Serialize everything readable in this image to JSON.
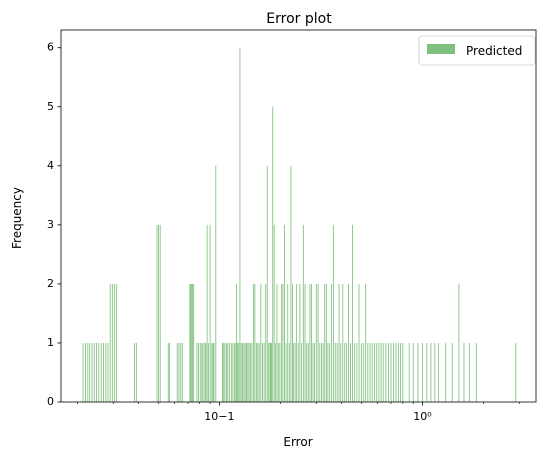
{
  "chart_data": {
    "type": "bar",
    "title": "Error plot",
    "xlabel": "Error",
    "ylabel": "Frequency",
    "xscale": "log",
    "xlim": [
      0.0166,
      3.62
    ],
    "ylim": [
      0,
      6.3
    ],
    "grid": false,
    "legend_position": "top-right",
    "x_tick_labels": [
      "10−1",
      "10⁰"
    ],
    "y_tick_labels": [
      "0",
      "1",
      "2",
      "3",
      "4",
      "5",
      "6"
    ],
    "series": [
      {
        "name": "Predicted",
        "color": "#81c17f",
        "bar_width_log10": 0.0042,
        "x": [
          0.0213,
          0.0219,
          0.0225,
          0.023,
          0.0236,
          0.0242,
          0.0248,
          0.0255,
          0.0262,
          0.0269,
          0.0276,
          0.0283,
          0.029,
          0.0297,
          0.0304,
          0.0311,
          0.0382,
          0.039,
          0.0493,
          0.0502,
          0.0511,
          0.056,
          0.0567,
          0.062,
          0.0632,
          0.0645,
          0.0657,
          0.0715,
          0.0723,
          0.0731,
          0.0739,
          0.0747,
          0.0775,
          0.079,
          0.0805,
          0.082,
          0.083,
          0.0848,
          0.0858,
          0.087,
          0.0885,
          0.09,
          0.0918,
          0.093,
          0.094,
          0.096,
          0.1035,
          0.105,
          0.1065,
          0.1085,
          0.11,
          0.112,
          0.1145,
          0.1165,
          0.1185,
          0.1205,
          0.1215,
          0.123,
          0.1245,
          0.1262,
          0.128,
          0.13,
          0.132,
          0.134,
          0.136,
          0.138,
          0.14,
          0.142,
          0.1445,
          0.147,
          0.1495,
          0.152,
          0.1545,
          0.157,
          0.16,
          0.163,
          0.166,
          0.169,
          0.172,
          0.175,
          0.1775,
          0.179,
          0.1805,
          0.183,
          0.186,
          0.189,
          0.192,
          0.195,
          0.1985,
          0.202,
          0.2055,
          0.209,
          0.213,
          0.217,
          0.221,
          0.225,
          0.229,
          0.232,
          0.236,
          0.24,
          0.2445,
          0.249,
          0.254,
          0.259,
          0.264,
          0.269,
          0.274,
          0.279,
          0.284,
          0.289,
          0.294,
          0.3,
          0.306,
          0.312,
          0.318,
          0.324,
          0.33,
          0.336,
          0.342,
          0.349,
          0.356,
          0.364,
          0.372,
          0.38,
          0.388,
          0.396,
          0.405,
          0.414,
          0.423,
          0.432,
          0.442,
          0.452,
          0.463,
          0.475,
          0.487,
          0.5,
          0.513,
          0.525,
          0.538,
          0.552,
          0.565,
          0.58,
          0.595,
          0.61,
          0.625,
          0.64,
          0.66,
          0.68,
          0.7,
          0.72,
          0.74,
          0.76,
          0.78,
          0.8,
          0.86,
          0.9,
          0.95,
          1.0,
          1.05,
          1.1,
          1.15,
          1.2,
          1.3,
          1.4,
          1.51,
          1.6,
          1.7,
          1.84,
          2.88
        ],
        "y": [
          1,
          1,
          1,
          1,
          1,
          1,
          1,
          1,
          1,
          1,
          1,
          1,
          2,
          2,
          2,
          2,
          1,
          1,
          3,
          3,
          3,
          1,
          1,
          1,
          1,
          1,
          1,
          2,
          2,
          2,
          2,
          2,
          1,
          1,
          1,
          1,
          1,
          1,
          1,
          3,
          1,
          3,
          1,
          1,
          1,
          4,
          1,
          1,
          1,
          1,
          1,
          1,
          1,
          1,
          1,
          1,
          2,
          1,
          1,
          6,
          1,
          1,
          1,
          1,
          1,
          1,
          1,
          1,
          1,
          2,
          2,
          1,
          1,
          1,
          2,
          1,
          1,
          2,
          4,
          1,
          1,
          1,
          1,
          5,
          3,
          1,
          2,
          1,
          1,
          2,
          2,
          3,
          1,
          2,
          1,
          4,
          2,
          1,
          1,
          2,
          1,
          2,
          1,
          3,
          2,
          1,
          1,
          2,
          2,
          1,
          1,
          2,
          2,
          1,
          1,
          1,
          2,
          2,
          1,
          1,
          2,
          3,
          1,
          1,
          2,
          1,
          2,
          1,
          1,
          2,
          1,
          3,
          1,
          1,
          2,
          1,
          1,
          2,
          1,
          1,
          1,
          1,
          1,
          1,
          1,
          1,
          1,
          1,
          1,
          1,
          1,
          1,
          1,
          1,
          1,
          1,
          1,
          1,
          1,
          1,
          1,
          1,
          1,
          1,
          2,
          1,
          1,
          1,
          1
        ]
      }
    ]
  }
}
